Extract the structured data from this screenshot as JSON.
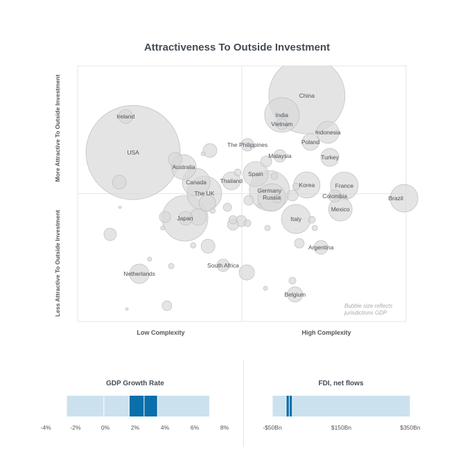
{
  "chart_data": [
    {
      "type": "scatter",
      "variant": "bubble",
      "title": "Attractiveness To Outside Investment",
      "xlabel_left": "Low Complexity",
      "xlabel_right": "High Complexity",
      "ylabel_top": "More Attractive To Outside Investment",
      "ylabel_bottom": "Less Attractive To Outside Investment",
      "note_line1": "Bubble size reflects",
      "note_line2": "jurisdictions GDP",
      "xlim": [
        0,
        100
      ],
      "ylim": [
        0,
        100
      ],
      "quadrant_lines": true,
      "bubble_color": "#d9d9d9",
      "points": [
        [
          "China",
          69.8,
          88.3,
          3025
        ],
        [
          "India",
          62.2,
          80.8,
          625
        ],
        [
          "Vietnam",
          62.2,
          77.2,
          64
        ],
        [
          "Indonesia",
          76.2,
          74.0,
          256
        ],
        [
          "Poland",
          70.9,
          70.2,
          144
        ],
        [
          "Turkey",
          76.8,
          64.2,
          169
        ],
        [
          "Malaysia",
          61.6,
          64.8,
          81
        ],
        [
          "The Philippines",
          51.7,
          69.1,
          81
        ],
        [
          "USA",
          16.9,
          66.1,
          4624
        ],
        [
          "Ireland",
          14.6,
          80.2,
          100
        ],
        [
          "",
          12.7,
          54.5,
          100
        ],
        [
          "Australia",
          32.3,
          60.4,
          324
        ],
        [
          "",
          29.7,
          63.4,
          100
        ],
        [
          "Canada",
          36.1,
          54.5,
          400
        ],
        [
          "The UK",
          38.6,
          50.1,
          625
        ],
        [
          "",
          39.5,
          46.3,
          144
        ],
        [
          "",
          40.3,
          66.9,
          100
        ],
        [
          "",
          38.2,
          65.6,
          9
        ],
        [
          "Thailand",
          46.8,
          55.0,
          169
        ],
        [
          "",
          48.7,
          58.3,
          25
        ],
        [
          "Spain",
          54.2,
          57.7,
          324
        ],
        [
          "Germany",
          58.4,
          51.2,
          841
        ],
        [
          "Russia",
          59.1,
          48.5,
          400
        ],
        [
          "",
          59.9,
          56.9,
          25
        ],
        [
          "",
          60.8,
          48.0,
          36
        ],
        [
          "Korea",
          69.8,
          53.4,
          361
        ],
        [
          "",
          65.4,
          49.3,
          64
        ],
        [
          "",
          66.5,
          52.8,
          25
        ],
        [
          "France",
          81.2,
          53.1,
          400
        ],
        [
          "Colombia",
          78.3,
          49.1,
          81
        ],
        [
          "Mexico",
          80.0,
          43.9,
          289
        ],
        [
          "Brazil",
          99.4,
          48.2,
          400
        ],
        [
          "Italy",
          66.5,
          40.1,
          441
        ],
        [
          "",
          71.3,
          39.8,
          25
        ],
        [
          "",
          72.2,
          36.6,
          16
        ],
        [
          "Argentina",
          74.1,
          29.0,
          100
        ],
        [
          "",
          67.5,
          30.6,
          49
        ],
        [
          "Japan",
          32.7,
          40.4,
          1089
        ],
        [
          "",
          36.7,
          40.9,
          144
        ],
        [
          "",
          32.9,
          40.4,
          100
        ],
        [
          "",
          26.6,
          40.9,
          64
        ],
        [
          "",
          25.9,
          36.6,
          9
        ],
        [
          "",
          9.9,
          34.1,
          81
        ],
        [
          "",
          12.9,
          44.7,
          4
        ],
        [
          "",
          45.6,
          44.7,
          36
        ],
        [
          "",
          41.1,
          43.4,
          16
        ],
        [
          "",
          47.3,
          39.8,
          36
        ],
        [
          "",
          49.8,
          39.3,
          64
        ],
        [
          "",
          47.3,
          37.9,
          64
        ],
        [
          "",
          51.7,
          38.5,
          25
        ],
        [
          "",
          52.1,
          47.4,
          49
        ],
        [
          "",
          57.4,
          62.6,
          64
        ],
        [
          "",
          55.3,
          45.3,
          9
        ],
        [
          "",
          57.8,
          36.6,
          16
        ],
        [
          "",
          39.7,
          29.5,
          100
        ],
        [
          "",
          35.2,
          29.8,
          16
        ],
        [
          "South Africa",
          44.3,
          22.0,
          81
        ],
        [
          "",
          51.5,
          19.2,
          121
        ],
        [
          "Netherlands",
          18.8,
          18.7,
          196
        ],
        [
          "",
          21.9,
          24.4,
          9
        ],
        [
          "",
          28.5,
          21.7,
          16
        ],
        [
          "",
          27.2,
          6.2,
          49
        ],
        [
          "",
          15.0,
          4.9,
          4
        ],
        [
          "Belgium",
          66.2,
          10.6,
          121
        ],
        [
          "",
          65.4,
          16.0,
          25
        ],
        [
          "",
          57.2,
          13.0,
          9
        ]
      ]
    },
    {
      "type": "bar",
      "variant": "range-strip",
      "title": "GDP Growth Rate",
      "xlim": [
        -4,
        8
      ],
      "ticks": [
        "-4%",
        "-2%",
        "0%",
        "2%",
        "4%",
        "6%",
        "8%"
      ],
      "tick_values": [
        -4,
        -2,
        0,
        2,
        4,
        6,
        8
      ],
      "segments": [
        {
          "from": -2.6,
          "to": -0.1,
          "color": "#cce1ee"
        },
        {
          "from": -0.1,
          "to": 1.6,
          "color": "#cce1ee"
        },
        {
          "from": 1.6,
          "to": 2.6,
          "color": "#0a6fab"
        },
        {
          "from": 2.6,
          "to": 3.5,
          "color": "#0a6fab"
        },
        {
          "from": 3.5,
          "to": 7.0,
          "color": "#cce1ee"
        }
      ]
    },
    {
      "type": "bar",
      "variant": "range-strip",
      "title": "FDI, net flows",
      "xlim": [
        -50,
        350
      ],
      "ticks": [
        "-$50Bn",
        "$150Bn",
        "$350Bn"
      ],
      "tick_values": [
        -50,
        150,
        350
      ],
      "segments": [
        {
          "from": -50,
          "to": -10,
          "color": "#cce1ee"
        },
        {
          "from": -10,
          "to": -1,
          "color": "#0a6fab"
        },
        {
          "from": -1,
          "to": 8,
          "color": "#0a6fab"
        },
        {
          "from": 8,
          "to": 350,
          "color": "#cce1ee"
        }
      ]
    }
  ]
}
